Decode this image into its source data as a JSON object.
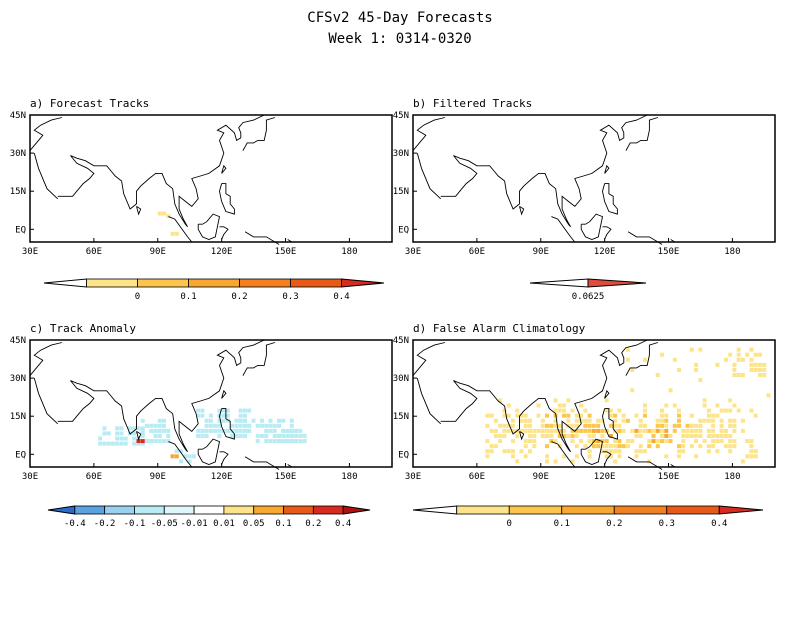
{
  "figure": {
    "title": "CFSv2 45-Day Forecasts",
    "subtitle": "Week 1: 0314-0320"
  },
  "map_axes": {
    "lon_ticks": [
      "30E",
      "60E",
      "90E",
      "120E",
      "150E",
      "180"
    ],
    "lat_ticks": [
      "45N",
      "30N",
      "15N",
      "EQ"
    ]
  },
  "colors": {
    "yellow_light": "#fde48a",
    "yellow": "#fcc64c",
    "orange_light": "#f8a830",
    "orange": "#f08020",
    "orange_dark": "#e85a18",
    "red": "#d82a20",
    "cyan_light": "#b8ecf4",
    "blue_light": "#9ad0f0",
    "blue": "#5aa2e0",
    "blue_dark": "#2a6cc8",
    "red_dark": "#b01010"
  },
  "chart_data": [
    {
      "type": "heatmap",
      "title": "a) Forecast Tracks",
      "colorbar_labels": [
        "0",
        "0.1",
        "0.2",
        "0.3",
        "0.4"
      ],
      "colorbar_colors": [
        "#fde48a",
        "#fcc64c",
        "#f8a830",
        "#f08020",
        "#e85a18",
        "#d82a20"
      ],
      "cells": [
        {
          "lon": 90,
          "lat": 7,
          "level": 1
        },
        {
          "lon": 92,
          "lat": 7,
          "level": 1
        },
        {
          "lon": 94,
          "lat": 6,
          "level": 1
        },
        {
          "lon": 96,
          "lat": -1,
          "level": 1
        },
        {
          "lon": 98,
          "lat": -1,
          "level": 1
        }
      ]
    },
    {
      "type": "heatmap",
      "title": "b) Filtered Tracks",
      "colorbar_labels": [
        "0.0625"
      ],
      "colorbar_colors": [
        "#e04c3c"
      ],
      "cells": []
    },
    {
      "type": "heatmap",
      "title": "c) Track Anomaly",
      "colorbar_labels": [
        "-0.4",
        "-0.2",
        "-0.1",
        "-0.05",
        "-0.01",
        "0.01",
        "0.05",
        "0.1",
        "0.2",
        "0.4"
      ],
      "colorbar_colors": [
        "#2a6cc8",
        "#5aa2e0",
        "#9ad0f0",
        "#b8ecf4",
        "#dff6fa",
        "#ffffff",
        "#fde48a",
        "#f8a830",
        "#e85a18",
        "#d82a20",
        "#b01010"
      ],
      "cells": [
        {
          "lon": 72,
          "lat": 8,
          "level": -1
        },
        {
          "lon": 76,
          "lat": 8,
          "level": -1
        },
        {
          "lon": 80,
          "lat": 6,
          "level": 2
        },
        {
          "lon": 82,
          "lat": 6,
          "level": 2
        },
        {
          "lon": 86,
          "lat": 8,
          "level": -1
        },
        {
          "lon": 88,
          "lat": 10,
          "level": -1
        },
        {
          "lon": 92,
          "lat": 12,
          "level": -1
        },
        {
          "lon": 96,
          "lat": 0,
          "level": 1
        },
        {
          "lon": 98,
          "lat": 0,
          "level": 1
        },
        {
          "lon": 124,
          "lat": 12,
          "level": -1
        },
        {
          "lon": 128,
          "lat": 14,
          "level": -1
        },
        {
          "lon": 132,
          "lat": 14,
          "level": -1
        },
        {
          "lon": 136,
          "lat": 12,
          "level": -1
        },
        {
          "lon": 140,
          "lat": 10,
          "level": -1
        },
        {
          "lon": 144,
          "lat": 10,
          "level": -1
        },
        {
          "lon": 148,
          "lat": 8,
          "level": -1
        },
        {
          "lon": 152,
          "lat": 8,
          "level": -1
        }
      ]
    },
    {
      "type": "heatmap",
      "title": "d) False Alarm Climatology",
      "colorbar_labels": [
        "0",
        "0.1",
        "0.2",
        "0.3",
        "0.4"
      ],
      "colorbar_colors": [
        "#fde48a",
        "#fcc64c",
        "#f8a830",
        "#f08020",
        "#e85a18",
        "#d82a20"
      ],
      "cells": [
        {
          "lon": 70,
          "lat": 14,
          "level": 1
        },
        {
          "lon": 80,
          "lat": 12,
          "level": 1
        },
        {
          "lon": 88,
          "lat": 10,
          "level": 2
        },
        {
          "lon": 100,
          "lat": 12,
          "level": 1
        },
        {
          "lon": 112,
          "lat": 12,
          "level": 2
        },
        {
          "lon": 124,
          "lat": 12,
          "level": 3
        },
        {
          "lon": 136,
          "lat": 10,
          "level": 2
        },
        {
          "lon": 148,
          "lat": 10,
          "level": 2
        },
        {
          "lon": 160,
          "lat": 12,
          "level": 1
        },
        {
          "lon": 172,
          "lat": 16,
          "level": 1
        },
        {
          "lon": 180,
          "lat": 38,
          "level": 1
        },
        {
          "lon": 150,
          "lat": 30,
          "level": 1
        }
      ]
    }
  ]
}
